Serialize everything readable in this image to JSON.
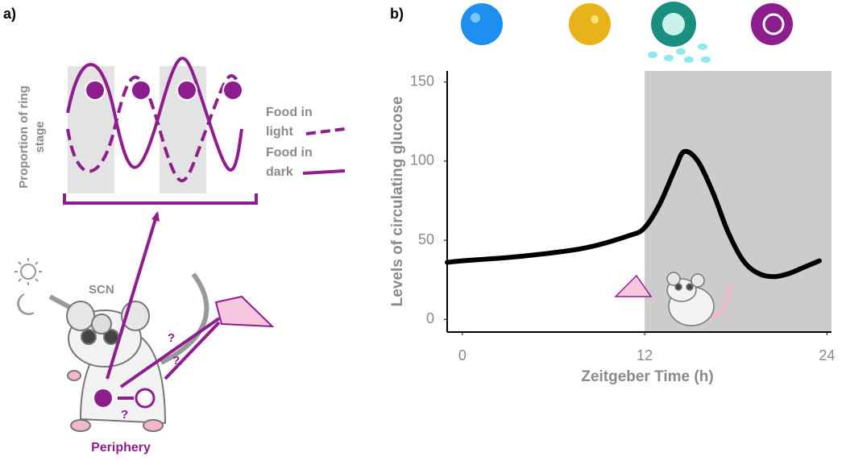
{
  "panel_a": {
    "label": "a)",
    "y_label": [
      "Proportion of ring",
      "stage"
    ],
    "legend_light": [
      "Food in",
      "light"
    ],
    "legend_dark": [
      "Food in",
      "dark"
    ],
    "scn": "SCN",
    "periphery": "Periphery",
    "question_marks": [
      "?",
      "?",
      "?"
    ]
  },
  "chart_data": {
    "type": "line",
    "label": "b)",
    "x_label": "Zeitgeber Time (h)",
    "y_label": "Levels of circulating glucose",
    "x": [
      -1,
      0,
      4,
      8,
      11,
      12,
      13,
      14,
      14.6,
      15.5,
      16.5,
      17.5,
      18.5,
      19.5,
      20.5,
      21.5,
      22.5,
      23.5
    ],
    "series": [
      {
        "name": "Glucose",
        "color": "#000000",
        "values": [
          36,
          37,
          40,
          45,
          53,
          58,
          73,
          95,
          106,
          100,
          80,
          55,
          37,
          29,
          27,
          29,
          33,
          37
        ]
      }
    ],
    "xlim": [
      -1,
      24.3
    ],
    "ylim": [
      -8,
      157
    ],
    "xticks": [
      0,
      12,
      24
    ],
    "yticks": [
      0,
      50,
      100,
      150
    ],
    "shaded_region": [
      12,
      24.3
    ],
    "shade_color": "#cdcbcc"
  }
}
